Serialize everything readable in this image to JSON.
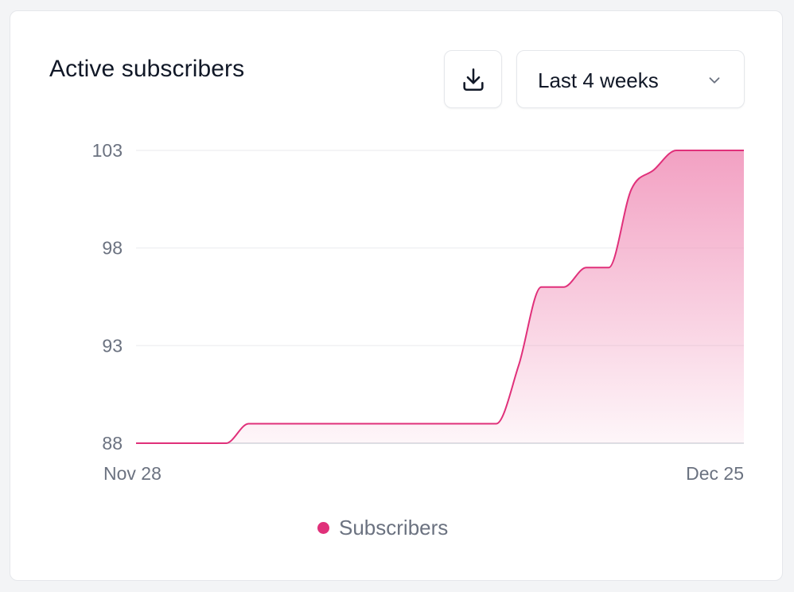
{
  "card": {
    "title": "Active subscribers"
  },
  "toolbar": {
    "download_icon": "download-icon",
    "range_value": "Last 4 weeks",
    "range_icon": "chevron-down-icon"
  },
  "colors": {
    "series": "#e0307a",
    "area_top": "#f090b8",
    "grid": "#f0f1f3",
    "axis": "#d1d5db"
  },
  "chart_data": {
    "type": "area",
    "title": "Active subscribers",
    "xlabel": "",
    "ylabel": "",
    "ylim": [
      88,
      103
    ],
    "yticks": [
      103,
      98,
      93,
      88
    ],
    "x_tick_labels": [
      "Nov 28",
      "Dec 25"
    ],
    "x": [
      "Nov 28",
      "Nov 29",
      "Nov 30",
      "Dec 1",
      "Dec 2",
      "Dec 3",
      "Dec 4",
      "Dec 5",
      "Dec 6",
      "Dec 7",
      "Dec 8",
      "Dec 9",
      "Dec 10",
      "Dec 11",
      "Dec 12",
      "Dec 13",
      "Dec 14",
      "Dec 15",
      "Dec 16",
      "Dec 17",
      "Dec 18",
      "Dec 19",
      "Dec 20",
      "Dec 21",
      "Dec 22",
      "Dec 23",
      "Dec 24",
      "Dec 25"
    ],
    "grid": true,
    "legend_position": "bottom-center",
    "series": [
      {
        "name": "Subscribers",
        "values": [
          88,
          88,
          88,
          88,
          88,
          89,
          89,
          89,
          89,
          89,
          89,
          89,
          89,
          89,
          89,
          89,
          89,
          92,
          96,
          96,
          97,
          97,
          101,
          102,
          103,
          103,
          103,
          103
        ]
      }
    ]
  }
}
